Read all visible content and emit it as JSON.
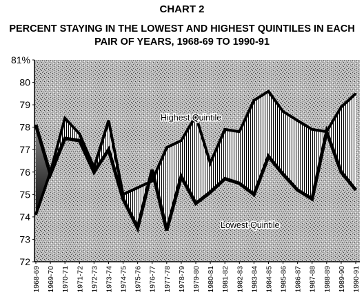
{
  "chart_data": {
    "type": "line",
    "title": "CHART 2",
    "subtitle": "PERCENT STAYING IN THE LOWEST AND HIGHEST QUINTILES IN EACH PAIR OF YEARS, 1968-69 TO 1990-91",
    "categories": [
      "1968-69",
      "1969-70",
      "1970-71",
      "1971-72",
      "1972-73",
      "1973-74",
      "1974-75",
      "1975-76",
      "1976-77",
      "1977-78",
      "1978-79",
      "1979-80",
      "1980-81",
      "1981-82",
      "1982-83",
      "1983-84",
      "1984-85",
      "1985-86",
      "1986-87",
      "1987-88",
      "1988-89",
      "1989-90",
      "1990-91"
    ],
    "series": [
      {
        "name": "Highest Quintile",
        "values": [
          74.1,
          76.0,
          78.4,
          77.7,
          76.2,
          78.3,
          75.0,
          75.3,
          75.6,
          77.1,
          77.4,
          78.5,
          76.4,
          77.9,
          77.8,
          79.2,
          79.6,
          78.7,
          78.3,
          77.9,
          77.8,
          78.9,
          79.5
        ]
      },
      {
        "name": "Lowest Quintile",
        "values": [
          78.1,
          75.9,
          77.5,
          77.4,
          76.0,
          77.0,
          74.8,
          73.5,
          76.1,
          73.4,
          75.8,
          74.6,
          75.1,
          75.7,
          75.5,
          75.0,
          76.7,
          75.9,
          75.2,
          74.8,
          77.8,
          76.0,
          75.2
        ]
      }
    ],
    "ylim": [
      72,
      81
    ],
    "yticks": [
      "72",
      "73",
      "74",
      "75",
      "76",
      "77",
      "78",
      "79",
      "80",
      "81%"
    ],
    "grid": false
  }
}
